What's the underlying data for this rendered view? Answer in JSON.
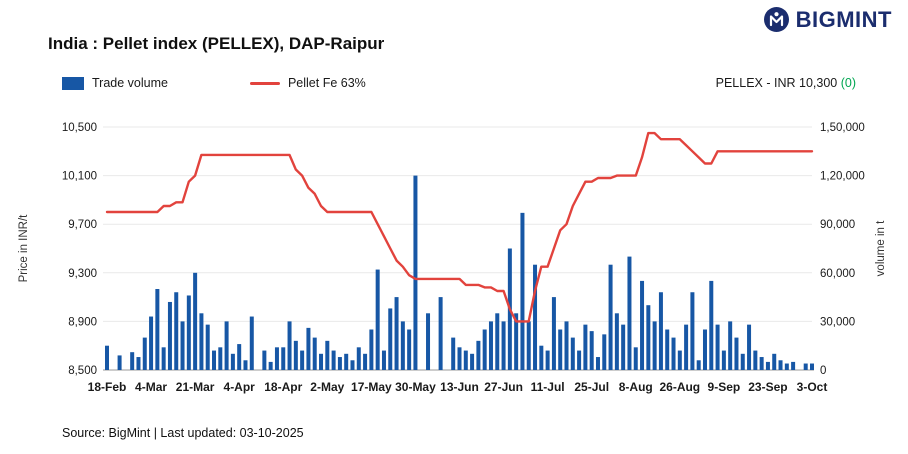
{
  "brand": {
    "name": "BIGMINT"
  },
  "title": "India : Pellet index (PELLEX), DAP-Raipur",
  "legend": {
    "volume_label": "Trade volume",
    "price_label": "Pellet Fe 63%"
  },
  "current": {
    "label": "PELLEX - INR 10,300",
    "change": "(0)"
  },
  "footer": {
    "text": "Source: BigMint | Last updated: 03-10-2025"
  },
  "colors": {
    "bar": "#1757a5",
    "line": "#e2433d",
    "green": "#00a651",
    "navy": "#1b2d6e",
    "grid": "#e9e9e9",
    "axis_line": "#9a9a9a",
    "text": "#1a1a1a"
  },
  "chart_data": {
    "type": "bar+line",
    "title": "India : Pellet index (PELLEX), DAP-Raipur",
    "ylabel_left": "Price in INR/t",
    "ylabel_right": "volume in t",
    "ylim_left": [
      8500,
      10500
    ],
    "ylim_right": [
      0,
      150000
    ],
    "grid": true,
    "legend_position": "top-left",
    "left_ticks": {
      "values": [
        8500,
        8900,
        9300,
        9700,
        10100,
        10500
      ],
      "labels": [
        "8,500",
        "8,900",
        "9,300",
        "9,700",
        "10,100",
        "10,500"
      ]
    },
    "right_ticks": {
      "values": [
        0,
        30000,
        60000,
        90000,
        120000,
        150000
      ],
      "labels": [
        "0",
        "30,000",
        "60,000",
        "90,000",
        "1,20,000",
        "1,50,000"
      ]
    },
    "x_tick_labels": [
      {
        "i": 0,
        "label": "18-Feb"
      },
      {
        "i": 7,
        "label": "4-Mar"
      },
      {
        "i": 14,
        "label": "21-Mar"
      },
      {
        "i": 21,
        "label": "4-Apr"
      },
      {
        "i": 28,
        "label": "18-Apr"
      },
      {
        "i": 35,
        "label": "2-May"
      },
      {
        "i": 42,
        "label": "17-May"
      },
      {
        "i": 49,
        "label": "30-May"
      },
      {
        "i": 56,
        "label": "13-Jun"
      },
      {
        "i": 63,
        "label": "27-Jun"
      },
      {
        "i": 70,
        "label": "11-Jul"
      },
      {
        "i": 77,
        "label": "25-Jul"
      },
      {
        "i": 84,
        "label": "8-Aug"
      },
      {
        "i": 91,
        "label": "26-Aug"
      },
      {
        "i": 98,
        "label": "9-Sep"
      },
      {
        "i": 105,
        "label": "23-Sep"
      },
      {
        "i": 112,
        "label": "3-Oct"
      }
    ],
    "series": [
      {
        "name": "Trade volume",
        "type": "bar",
        "axis": "right",
        "values": [
          15000,
          0,
          9000,
          0,
          11000,
          8000,
          20000,
          33000,
          50000,
          14000,
          42000,
          48000,
          30000,
          46000,
          60000,
          35000,
          28000,
          12000,
          14000,
          30000,
          10000,
          16000,
          6000,
          33000,
          0,
          12000,
          5000,
          14000,
          14000,
          30000,
          18000,
          12000,
          26000,
          20000,
          10000,
          18000,
          12000,
          8000,
          10000,
          6000,
          14000,
          10000,
          25000,
          62000,
          12000,
          38000,
          45000,
          30000,
          25000,
          120000,
          0,
          35000,
          0,
          45000,
          0,
          20000,
          14000,
          12000,
          10000,
          18000,
          25000,
          30000,
          35000,
          30000,
          75000,
          35000,
          97000,
          30000,
          65000,
          15000,
          12000,
          45000,
          25000,
          30000,
          20000,
          12000,
          28000,
          24000,
          8000,
          22000,
          65000,
          35000,
          28000,
          70000,
          14000,
          55000,
          40000,
          30000,
          48000,
          25000,
          20000,
          12000,
          28000,
          48000,
          6000,
          25000,
          55000,
          28000,
          12000,
          30000,
          20000,
          10000,
          28000,
          12000,
          8000,
          5000,
          10000,
          6000,
          4000,
          5000,
          0,
          4000,
          4000
        ]
      },
      {
        "name": "Pellet Fe 63%",
        "type": "line",
        "axis": "left",
        "values": [
          9800,
          9800,
          9800,
          9800,
          9800,
          9800,
          9800,
          9800,
          9800,
          9850,
          9850,
          9880,
          9880,
          10050,
          10100,
          10270,
          10270,
          10270,
          10270,
          10270,
          10270,
          10270,
          10270,
          10270,
          10270,
          10270,
          10270,
          10270,
          10270,
          10270,
          10150,
          10100,
          10000,
          9950,
          9850,
          9800,
          9800,
          9800,
          9800,
          9800,
          9800,
          9800,
          9800,
          9700,
          9600,
          9500,
          9400,
          9350,
          9280,
          9250,
          9250,
          9250,
          9250,
          9250,
          9250,
          9250,
          9250,
          9200,
          9200,
          9200,
          9180,
          9180,
          9150,
          9150,
          9000,
          8900,
          8900,
          8900,
          9150,
          9350,
          9350,
          9500,
          9650,
          9700,
          9850,
          9950,
          10050,
          10050,
          10080,
          10080,
          10080,
          10100,
          10100,
          10100,
          10100,
          10250,
          10450,
          10450,
          10400,
          10400,
          10400,
          10400,
          10350,
          10300,
          10250,
          10200,
          10200,
          10300,
          10300,
          10300,
          10300,
          10300,
          10300,
          10300,
          10300,
          10300,
          10300,
          10300,
          10300,
          10300,
          10300,
          10300,
          10300
        ]
      }
    ]
  }
}
